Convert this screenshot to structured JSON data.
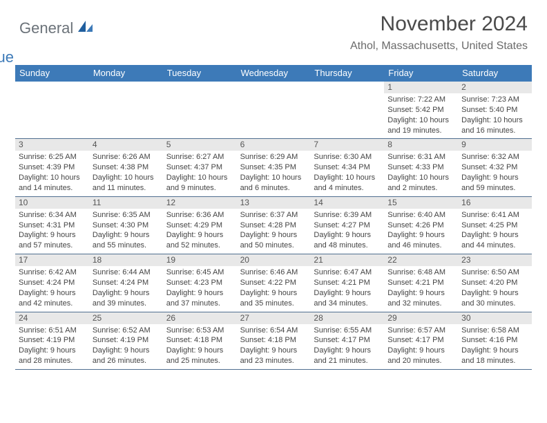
{
  "logo": {
    "general": "General",
    "blue": "Blue"
  },
  "title": "November 2024",
  "location": "Athol, Massachusetts, United States",
  "colors": {
    "header_bg": "#3d7ab8",
    "header_text": "#ffffff",
    "grid_border": "#4f6e8f",
    "daynum_bg": "#e8e8e8",
    "body_bg": "#ffffff"
  },
  "weekdays": [
    "Sunday",
    "Monday",
    "Tuesday",
    "Wednesday",
    "Thursday",
    "Friday",
    "Saturday"
  ],
  "weeks": [
    [
      {
        "n": "",
        "empty": true
      },
      {
        "n": "",
        "empty": true
      },
      {
        "n": "",
        "empty": true
      },
      {
        "n": "",
        "empty": true
      },
      {
        "n": "",
        "empty": true
      },
      {
        "n": "1",
        "sunrise": "Sunrise: 7:22 AM",
        "sunset": "Sunset: 5:42 PM",
        "daylight1": "Daylight: 10 hours",
        "daylight2": "and 19 minutes."
      },
      {
        "n": "2",
        "sunrise": "Sunrise: 7:23 AM",
        "sunset": "Sunset: 5:40 PM",
        "daylight1": "Daylight: 10 hours",
        "daylight2": "and 16 minutes."
      }
    ],
    [
      {
        "n": "3",
        "sunrise": "Sunrise: 6:25 AM",
        "sunset": "Sunset: 4:39 PM",
        "daylight1": "Daylight: 10 hours",
        "daylight2": "and 14 minutes."
      },
      {
        "n": "4",
        "sunrise": "Sunrise: 6:26 AM",
        "sunset": "Sunset: 4:38 PM",
        "daylight1": "Daylight: 10 hours",
        "daylight2": "and 11 minutes."
      },
      {
        "n": "5",
        "sunrise": "Sunrise: 6:27 AM",
        "sunset": "Sunset: 4:37 PM",
        "daylight1": "Daylight: 10 hours",
        "daylight2": "and 9 minutes."
      },
      {
        "n": "6",
        "sunrise": "Sunrise: 6:29 AM",
        "sunset": "Sunset: 4:35 PM",
        "daylight1": "Daylight: 10 hours",
        "daylight2": "and 6 minutes."
      },
      {
        "n": "7",
        "sunrise": "Sunrise: 6:30 AM",
        "sunset": "Sunset: 4:34 PM",
        "daylight1": "Daylight: 10 hours",
        "daylight2": "and 4 minutes."
      },
      {
        "n": "8",
        "sunrise": "Sunrise: 6:31 AM",
        "sunset": "Sunset: 4:33 PM",
        "daylight1": "Daylight: 10 hours",
        "daylight2": "and 2 minutes."
      },
      {
        "n": "9",
        "sunrise": "Sunrise: 6:32 AM",
        "sunset": "Sunset: 4:32 PM",
        "daylight1": "Daylight: 9 hours",
        "daylight2": "and 59 minutes."
      }
    ],
    [
      {
        "n": "10",
        "sunrise": "Sunrise: 6:34 AM",
        "sunset": "Sunset: 4:31 PM",
        "daylight1": "Daylight: 9 hours",
        "daylight2": "and 57 minutes."
      },
      {
        "n": "11",
        "sunrise": "Sunrise: 6:35 AM",
        "sunset": "Sunset: 4:30 PM",
        "daylight1": "Daylight: 9 hours",
        "daylight2": "and 55 minutes."
      },
      {
        "n": "12",
        "sunrise": "Sunrise: 6:36 AM",
        "sunset": "Sunset: 4:29 PM",
        "daylight1": "Daylight: 9 hours",
        "daylight2": "and 52 minutes."
      },
      {
        "n": "13",
        "sunrise": "Sunrise: 6:37 AM",
        "sunset": "Sunset: 4:28 PM",
        "daylight1": "Daylight: 9 hours",
        "daylight2": "and 50 minutes."
      },
      {
        "n": "14",
        "sunrise": "Sunrise: 6:39 AM",
        "sunset": "Sunset: 4:27 PM",
        "daylight1": "Daylight: 9 hours",
        "daylight2": "and 48 minutes."
      },
      {
        "n": "15",
        "sunrise": "Sunrise: 6:40 AM",
        "sunset": "Sunset: 4:26 PM",
        "daylight1": "Daylight: 9 hours",
        "daylight2": "and 46 minutes."
      },
      {
        "n": "16",
        "sunrise": "Sunrise: 6:41 AM",
        "sunset": "Sunset: 4:25 PM",
        "daylight1": "Daylight: 9 hours",
        "daylight2": "and 44 minutes."
      }
    ],
    [
      {
        "n": "17",
        "sunrise": "Sunrise: 6:42 AM",
        "sunset": "Sunset: 4:24 PM",
        "daylight1": "Daylight: 9 hours",
        "daylight2": "and 42 minutes."
      },
      {
        "n": "18",
        "sunrise": "Sunrise: 6:44 AM",
        "sunset": "Sunset: 4:24 PM",
        "daylight1": "Daylight: 9 hours",
        "daylight2": "and 39 minutes."
      },
      {
        "n": "19",
        "sunrise": "Sunrise: 6:45 AM",
        "sunset": "Sunset: 4:23 PM",
        "daylight1": "Daylight: 9 hours",
        "daylight2": "and 37 minutes."
      },
      {
        "n": "20",
        "sunrise": "Sunrise: 6:46 AM",
        "sunset": "Sunset: 4:22 PM",
        "daylight1": "Daylight: 9 hours",
        "daylight2": "and 35 minutes."
      },
      {
        "n": "21",
        "sunrise": "Sunrise: 6:47 AM",
        "sunset": "Sunset: 4:21 PM",
        "daylight1": "Daylight: 9 hours",
        "daylight2": "and 34 minutes."
      },
      {
        "n": "22",
        "sunrise": "Sunrise: 6:48 AM",
        "sunset": "Sunset: 4:21 PM",
        "daylight1": "Daylight: 9 hours",
        "daylight2": "and 32 minutes."
      },
      {
        "n": "23",
        "sunrise": "Sunrise: 6:50 AM",
        "sunset": "Sunset: 4:20 PM",
        "daylight1": "Daylight: 9 hours",
        "daylight2": "and 30 minutes."
      }
    ],
    [
      {
        "n": "24",
        "sunrise": "Sunrise: 6:51 AM",
        "sunset": "Sunset: 4:19 PM",
        "daylight1": "Daylight: 9 hours",
        "daylight2": "and 28 minutes."
      },
      {
        "n": "25",
        "sunrise": "Sunrise: 6:52 AM",
        "sunset": "Sunset: 4:19 PM",
        "daylight1": "Daylight: 9 hours",
        "daylight2": "and 26 minutes."
      },
      {
        "n": "26",
        "sunrise": "Sunrise: 6:53 AM",
        "sunset": "Sunset: 4:18 PM",
        "daylight1": "Daylight: 9 hours",
        "daylight2": "and 25 minutes."
      },
      {
        "n": "27",
        "sunrise": "Sunrise: 6:54 AM",
        "sunset": "Sunset: 4:18 PM",
        "daylight1": "Daylight: 9 hours",
        "daylight2": "and 23 minutes."
      },
      {
        "n": "28",
        "sunrise": "Sunrise: 6:55 AM",
        "sunset": "Sunset: 4:17 PM",
        "daylight1": "Daylight: 9 hours",
        "daylight2": "and 21 minutes."
      },
      {
        "n": "29",
        "sunrise": "Sunrise: 6:57 AM",
        "sunset": "Sunset: 4:17 PM",
        "daylight1": "Daylight: 9 hours",
        "daylight2": "and 20 minutes."
      },
      {
        "n": "30",
        "sunrise": "Sunrise: 6:58 AM",
        "sunset": "Sunset: 4:16 PM",
        "daylight1": "Daylight: 9 hours",
        "daylight2": "and 18 minutes."
      }
    ]
  ]
}
